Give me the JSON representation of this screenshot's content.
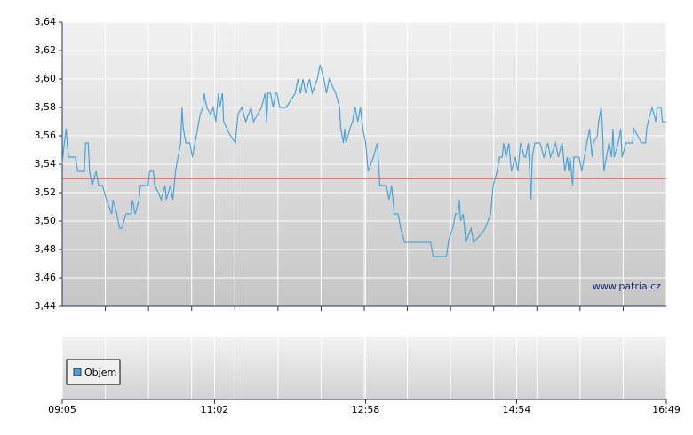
{
  "chart_data": {
    "type": "line",
    "xlim": [
      545,
      1009
    ],
    "xticks": [
      {
        "value": 545,
        "label": "09:05"
      },
      {
        "value": 662,
        "label": "11:02"
      },
      {
        "value": 778,
        "label": "12:58"
      },
      {
        "value": 894,
        "label": "14:54"
      },
      {
        "value": 1009,
        "label": "16:49"
      }
    ],
    "ylim": [
      3.44,
      3.64
    ],
    "yticks": [
      {
        "value": 3.44,
        "label": "3,44"
      },
      {
        "value": 3.46,
        "label": "3,46"
      },
      {
        "value": 3.48,
        "label": "3,48"
      },
      {
        "value": 3.5,
        "label": "3,50"
      },
      {
        "value": 3.52,
        "label": "3,52"
      },
      {
        "value": 3.54,
        "label": "3,54"
      },
      {
        "value": 3.56,
        "label": "3,56"
      },
      {
        "value": 3.58,
        "label": "3,58"
      },
      {
        "value": 3.6,
        "label": "3,60"
      },
      {
        "value": 3.62,
        "label": "3,62"
      },
      {
        "value": 3.64,
        "label": "3,64"
      }
    ],
    "grid": true,
    "reference_line": 3.53,
    "reference_color": "#cc2222",
    "watermark": "www.patria.cz",
    "volume_legend": "Objem",
    "volume_color": "#4a9fd8",
    "x": [
      545,
      546,
      548,
      549,
      550,
      555,
      557,
      562,
      563,
      565,
      566,
      568,
      571,
      573,
      576,
      579,
      583,
      584,
      587,
      589,
      591,
      594,
      598,
      599,
      601,
      604,
      605,
      611,
      612,
      615,
      616,
      619,
      621,
      624,
      625,
      628,
      630,
      632,
      634,
      636,
      637,
      638,
      640,
      643,
      645,
      647,
      649,
      651,
      653,
      654,
      656,
      659,
      661,
      663,
      665,
      666,
      668,
      669,
      673,
      678,
      680,
      683,
      686,
      690,
      692,
      695,
      698,
      701,
      702,
      703,
      705,
      707,
      709,
      710,
      712,
      717,
      724,
      726,
      728,
      730,
      732,
      735,
      737,
      741,
      743,
      746,
      748,
      750,
      755,
      758,
      759,
      761,
      762,
      763,
      766,
      768,
      770,
      772,
      774,
      776,
      778,
      780,
      784,
      787,
      789,
      794,
      796,
      798,
      800,
      803,
      805,
      808,
      813,
      818,
      823,
      828,
      830,
      834,
      838,
      840,
      842,
      845,
      847,
      849,
      850,
      851,
      853,
      855,
      859,
      861,
      866,
      870,
      874,
      876,
      879,
      881,
      883,
      884,
      886,
      888,
      890,
      893,
      895,
      897,
      900,
      901,
      903,
      905,
      906,
      908,
      912,
      915,
      918,
      920,
      924,
      926,
      929,
      931,
      933,
      934,
      935,
      937,
      938,
      942,
      944,
      946,
      948,
      950,
      952,
      953,
      956,
      957,
      959,
      960,
      961,
      963,
      965,
      967,
      968,
      969,
      972,
      974,
      975,
      978,
      983,
      984,
      987,
      990,
      993,
      994,
      995,
      998,
      1001,
      1002,
      1005,
      1006,
      1009
    ],
    "series": [
      {
        "color": "#4aa3d8",
        "values": [
          3.54,
          3.55,
          3.565,
          3.552,
          3.545,
          3.545,
          3.535,
          3.535,
          3.555,
          3.555,
          3.535,
          3.525,
          3.535,
          3.525,
          3.525,
          3.515,
          3.505,
          3.515,
          3.505,
          3.495,
          3.495,
          3.505,
          3.505,
          3.515,
          3.505,
          3.515,
          3.525,
          3.525,
          3.535,
          3.535,
          3.525,
          3.52,
          3.515,
          3.525,
          3.515,
          3.525,
          3.515,
          3.535,
          3.545,
          3.555,
          3.58,
          3.565,
          3.555,
          3.555,
          3.545,
          3.555,
          3.565,
          3.575,
          3.58,
          3.59,
          3.58,
          3.575,
          3.58,
          3.57,
          3.59,
          3.58,
          3.59,
          3.57,
          3.562,
          3.555,
          3.575,
          3.58,
          3.57,
          3.58,
          3.57,
          3.575,
          3.58,
          3.59,
          3.57,
          3.59,
          3.59,
          3.58,
          3.59,
          3.59,
          3.58,
          3.58,
          3.59,
          3.6,
          3.59,
          3.6,
          3.59,
          3.6,
          3.59,
          3.6,
          3.61,
          3.6,
          3.59,
          3.6,
          3.59,
          3.58,
          3.565,
          3.555,
          3.565,
          3.555,
          3.565,
          3.57,
          3.58,
          3.57,
          3.58,
          3.565,
          3.555,
          3.535,
          3.545,
          3.555,
          3.525,
          3.525,
          3.515,
          3.525,
          3.505,
          3.505,
          3.495,
          3.485,
          3.485,
          3.485,
          3.485,
          3.485,
          3.475,
          3.475,
          3.475,
          3.475,
          3.487,
          3.495,
          3.505,
          3.505,
          3.515,
          3.5,
          3.505,
          3.485,
          3.495,
          3.485,
          3.49,
          3.495,
          3.505,
          3.525,
          3.535,
          3.545,
          3.545,
          3.555,
          3.545,
          3.555,
          3.535,
          3.545,
          3.535,
          3.555,
          3.545,
          3.545,
          3.555,
          3.515,
          3.545,
          3.555,
          3.555,
          3.545,
          3.555,
          3.545,
          3.555,
          3.545,
          3.555,
          3.535,
          3.545,
          3.535,
          3.545,
          3.525,
          3.545,
          3.545,
          3.535,
          3.545,
          3.555,
          3.565,
          3.545,
          3.555,
          3.56,
          3.57,
          3.58,
          3.565,
          3.535,
          3.545,
          3.555,
          3.545,
          3.565,
          3.545,
          3.555,
          3.565,
          3.545,
          3.555,
          3.555,
          3.565,
          3.56,
          3.555,
          3.555,
          3.565,
          3.57,
          3.58,
          3.57,
          3.58,
          3.58,
          3.57,
          3.57
        ]
      }
    ]
  }
}
